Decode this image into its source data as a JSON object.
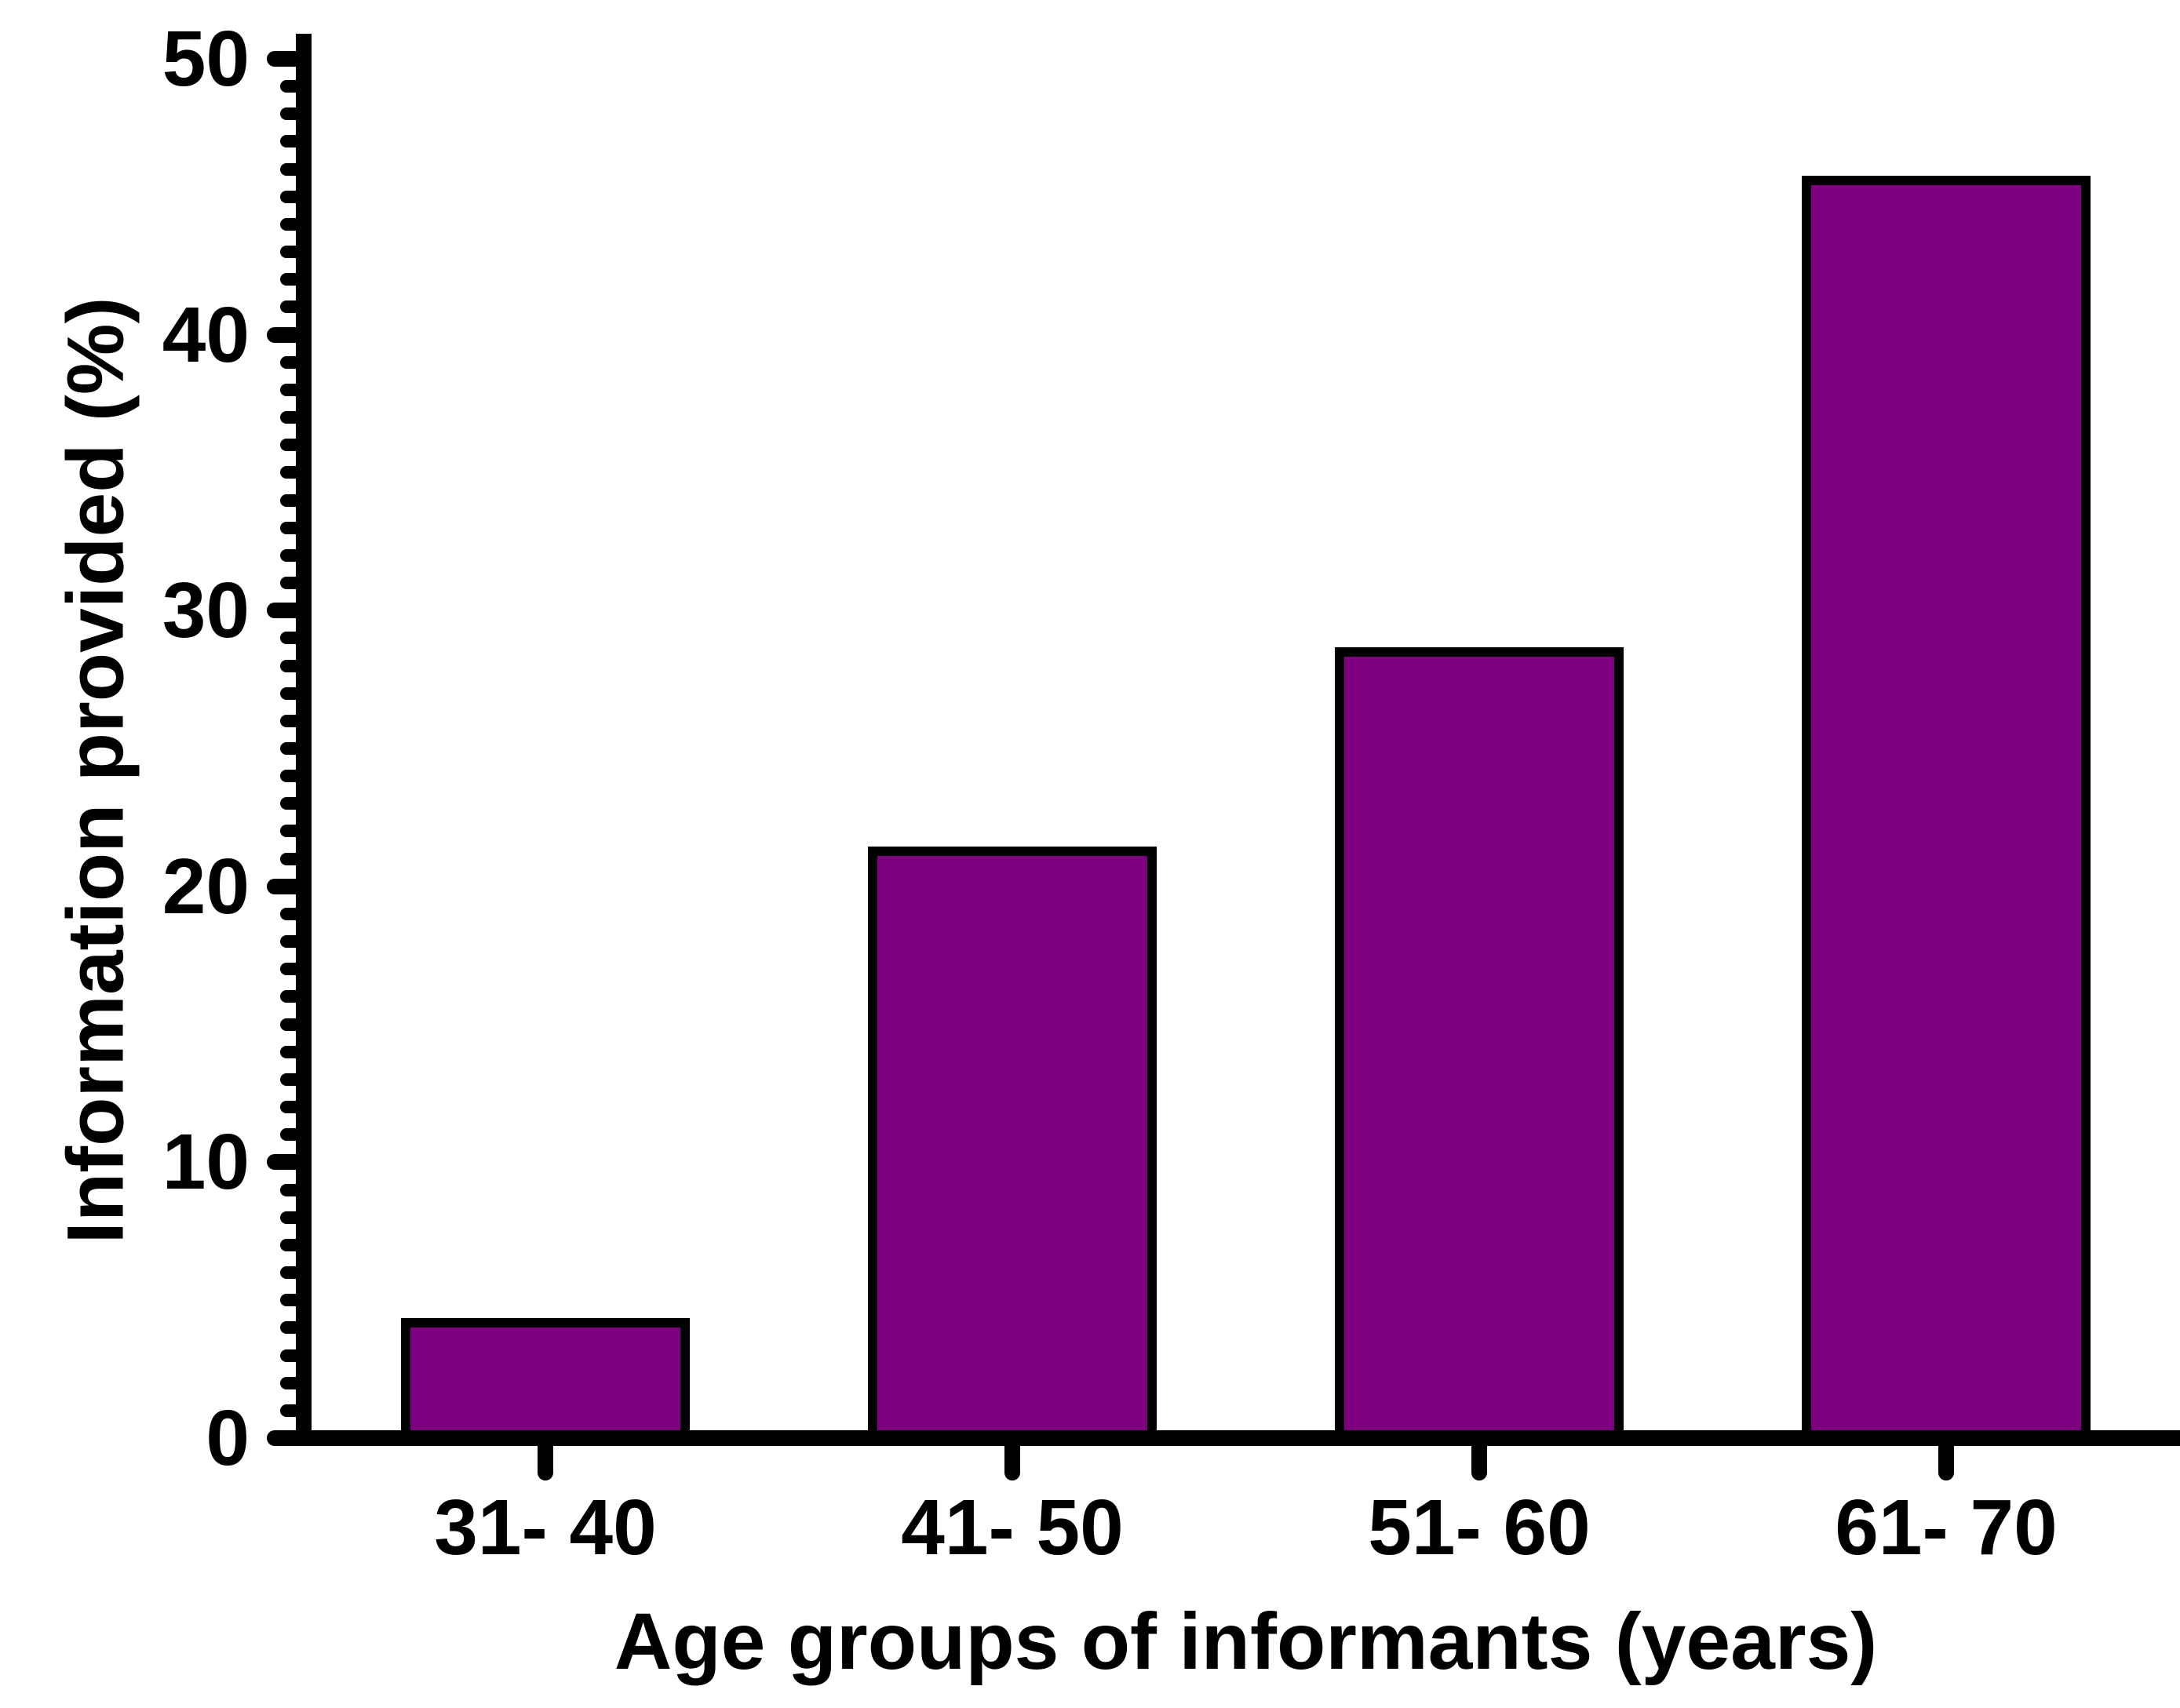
{
  "figure": {
    "background": "#ffffff"
  },
  "chart_data": {
    "type": "bar",
    "title": "",
    "categories": [
      "31- 40",
      "41- 50",
      "51- 60",
      "61- 70"
    ],
    "values": [
      4.3,
      21.4,
      28.6,
      45.7
    ],
    "xlabel": "Age groups of informants (years)",
    "ylabel": "Information provided (%)",
    "ylim": [
      0,
      50
    ],
    "yticks": [
      0,
      10,
      20,
      30,
      40,
      50
    ],
    "y_minor_tick_step": 1,
    "grid": false,
    "legend": "none",
    "bar_color": "#7d007f",
    "bar_border_color": "#000000",
    "axis_color": "#000000",
    "text_color": "#000000"
  }
}
